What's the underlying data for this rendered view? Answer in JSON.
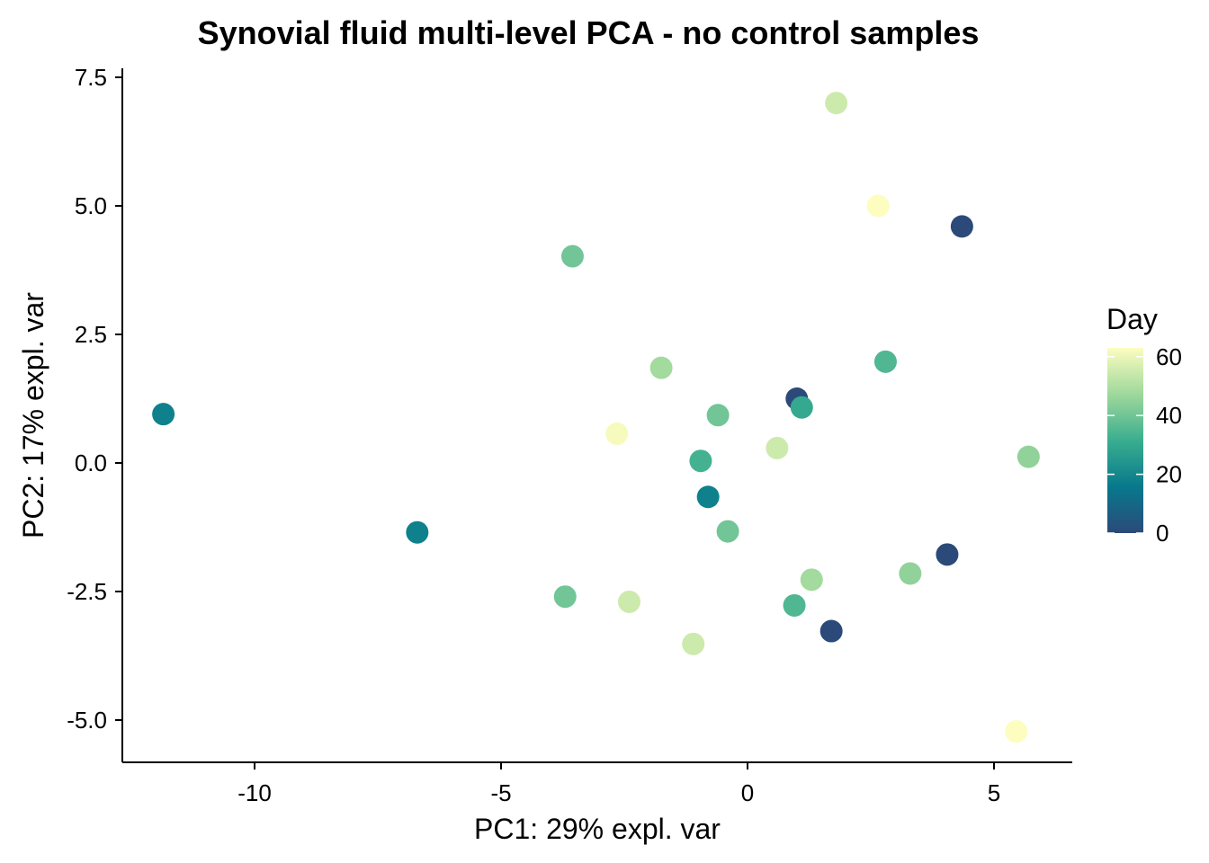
{
  "chart_data": {
    "type": "scatter",
    "title": "Synovial fluid multi-level PCA - no control samples",
    "xlabel": "PC1: 29% expl. var",
    "ylabel": "PC2: 17% expl. var",
    "xlim": [
      -12.8,
      6.5
    ],
    "ylim": [
      -5.8,
      7.6
    ],
    "x_ticks": [
      -10,
      -5,
      0,
      5
    ],
    "x_tick_labels": [
      "-10",
      "-5",
      "0",
      "5"
    ],
    "y_ticks": [
      -5,
      -2.5,
      0,
      2.5,
      5,
      7.5
    ],
    "y_tick_labels": [
      "-5.0",
      "-2.5",
      "0.0",
      "2.5",
      "5.0",
      "7.5"
    ],
    "grid": false,
    "legend": {
      "title": "Day",
      "placement": "right",
      "min": 0,
      "max": 63,
      "ticks": [
        0,
        20,
        40,
        60
      ],
      "tick_labels": [
        "0",
        "20",
        "40",
        "60"
      ],
      "colorscale": [
        "#2b4a7a",
        "#07798c",
        "#3aae8f",
        "#9fd89c",
        "#fcfdbf"
      ]
    },
    "points": [
      {
        "x": 1.8,
        "y": 7.0,
        "day": 55
      },
      {
        "x": 2.65,
        "y": 5.0,
        "day": 63
      },
      {
        "x": 4.35,
        "y": 4.6,
        "day": 0
      },
      {
        "x": -3.55,
        "y": 4.02,
        "day": 40
      },
      {
        "x": 2.8,
        "y": 1.97,
        "day": 35
      },
      {
        "x": -11.85,
        "y": 0.95,
        "day": 18
      },
      {
        "x": -1.75,
        "y": 1.85,
        "day": 48
      },
      {
        "x": 1.0,
        "y": 1.25,
        "day": 0
      },
      {
        "x": 1.1,
        "y": 1.08,
        "day": 30
      },
      {
        "x": -0.6,
        "y": 0.93,
        "day": 40
      },
      {
        "x": -2.65,
        "y": 0.57,
        "day": 62
      },
      {
        "x": 0.6,
        "y": 0.29,
        "day": 55
      },
      {
        "x": 5.7,
        "y": 0.12,
        "day": 45
      },
      {
        "x": -0.95,
        "y": 0.04,
        "day": 33
      },
      {
        "x": -0.8,
        "y": -0.66,
        "day": 18
      },
      {
        "x": -6.7,
        "y": -1.35,
        "day": 18
      },
      {
        "x": -0.4,
        "y": -1.33,
        "day": 40
      },
      {
        "x": 4.05,
        "y": -1.78,
        "day": 0
      },
      {
        "x": 3.3,
        "y": -2.15,
        "day": 45
      },
      {
        "x": 1.3,
        "y": -2.27,
        "day": 48
      },
      {
        "x": -3.7,
        "y": -2.6,
        "day": 40
      },
      {
        "x": -2.4,
        "y": -2.7,
        "day": 55
      },
      {
        "x": 0.95,
        "y": -2.77,
        "day": 35
      },
      {
        "x": 1.7,
        "y": -3.27,
        "day": 0
      },
      {
        "x": -1.1,
        "y": -3.52,
        "day": 55
      },
      {
        "x": 5.45,
        "y": -5.22,
        "day": 63
      }
    ]
  }
}
